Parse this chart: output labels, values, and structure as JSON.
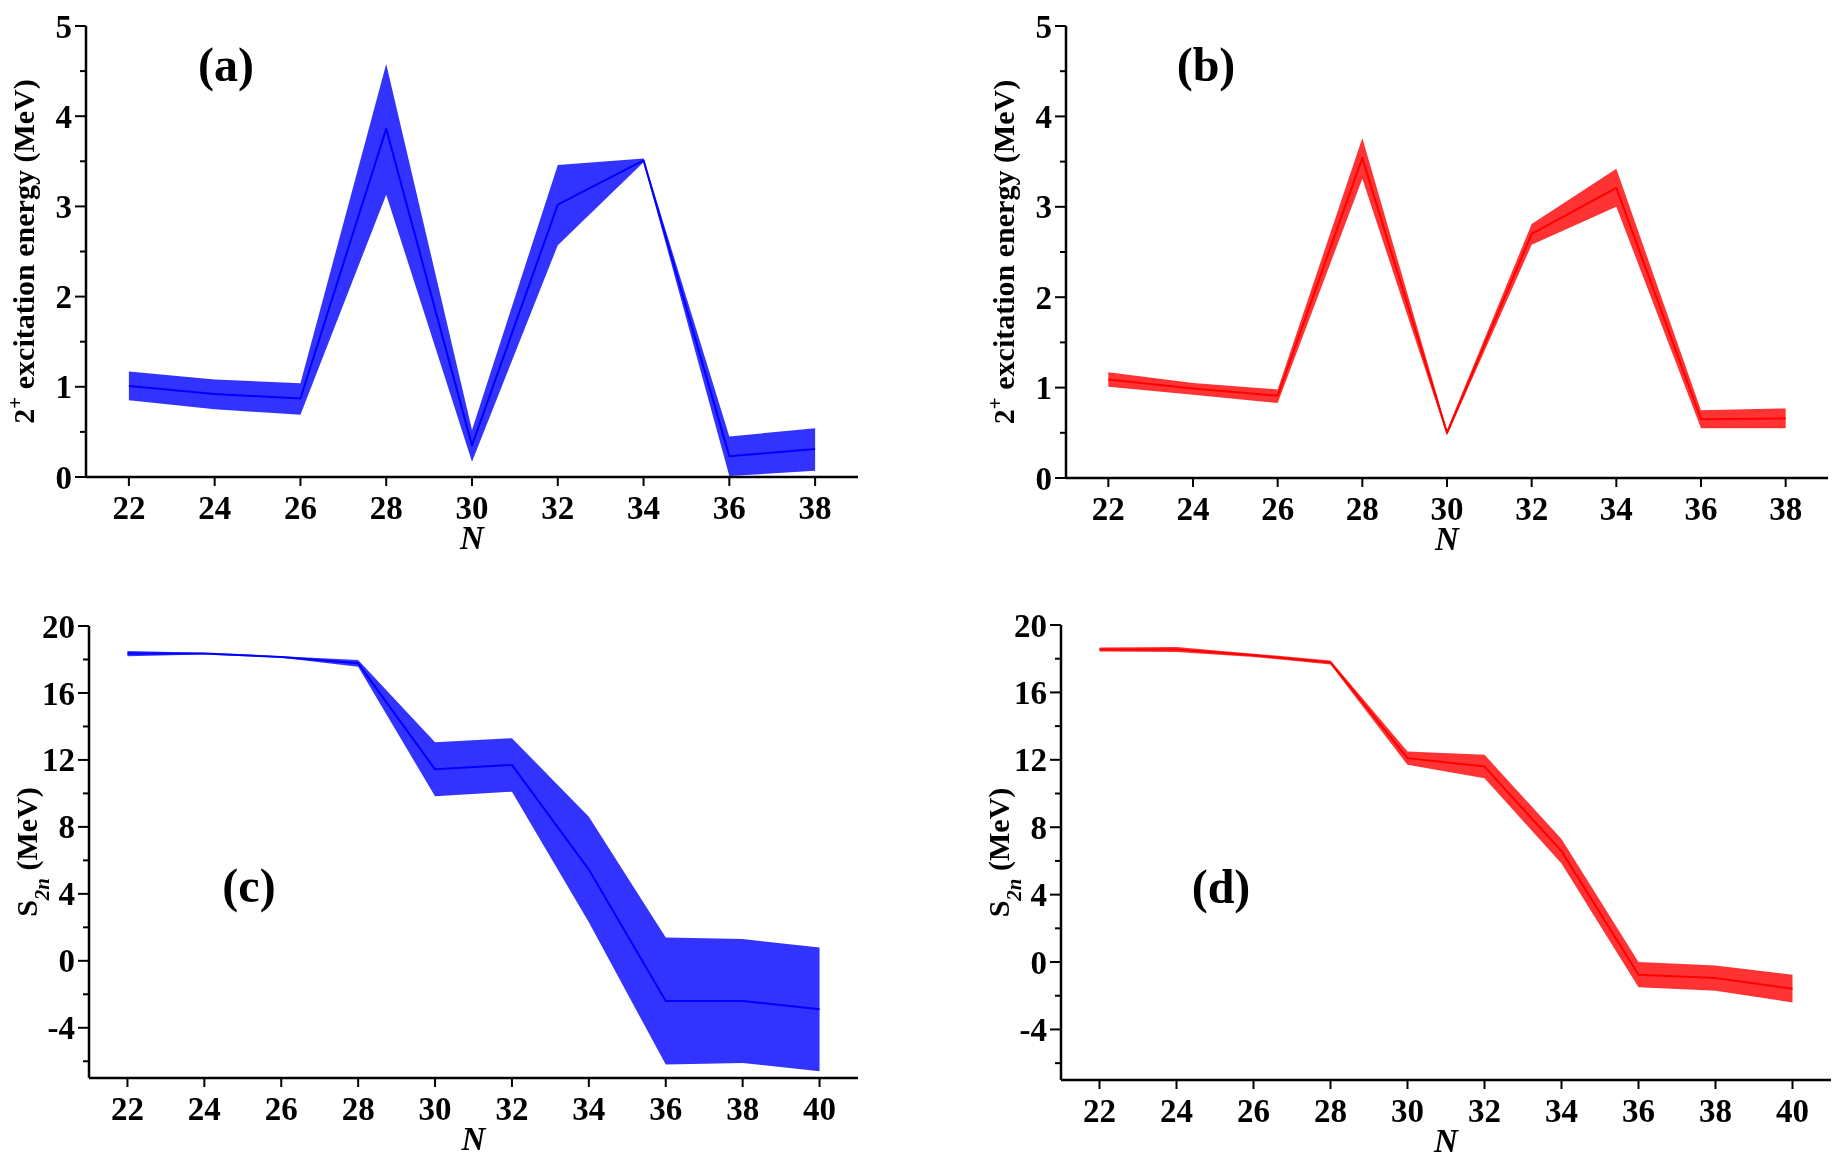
{
  "chart_data": [
    {
      "type": "line",
      "xlabel": "N",
      "ylabel": "2$^{+}$ excitation energy (MeV)",
      "annotations": [
        "(a)"
      ],
      "x": [
        22,
        24,
        26,
        28,
        30,
        32,
        34,
        36,
        38
      ],
      "xlim": [
        21,
        39
      ],
      "xticks": [
        22,
        24,
        26,
        28,
        30,
        32,
        34,
        36,
        38
      ],
      "ylim": [
        0,
        5
      ],
      "yticks": [
        0,
        {
          "value": 0.5,
          "label": null
        },
        1,
        {
          "value": 1.5,
          "label": null
        },
        2,
        {
          "value": 2.5,
          "label": null
        },
        3,
        {
          "value": 3.5,
          "label": null
        },
        4,
        {
          "value": 4.5,
          "label": null
        },
        5
      ],
      "series": [
        {
          "color": "#0000ff",
          "values": [
            1.01,
            0.92,
            0.87,
            3.86,
            0.35,
            3.02,
            3.51,
            0.23,
            0.31
          ],
          "lower": [
            0.85,
            0.75,
            0.69,
            3.13,
            0.17,
            2.57,
            3.49,
            0.01,
            0.07
          ],
          "upper": [
            1.17,
            1.08,
            1.04,
            4.58,
            0.52,
            3.46,
            3.53,
            0.45,
            0.54
          ]
        }
      ]
    },
    {
      "type": "line",
      "xlabel": "N",
      "ylabel": "2$^{+}$ excitation energy (MeV)",
      "annotations": [
        "(b)"
      ],
      "x": [
        22,
        24,
        26,
        28,
        30,
        32,
        34,
        36,
        38
      ],
      "xlim": [
        21,
        39
      ],
      "xticks": [
        22,
        24,
        26,
        28,
        30,
        32,
        34,
        36,
        38
      ],
      "ylim": [
        0,
        5
      ],
      "yticks": [
        0,
        {
          "value": 0.5,
          "label": null
        },
        1,
        {
          "value": 1.5,
          "label": null
        },
        2,
        {
          "value": 2.5,
          "label": null
        },
        3,
        {
          "value": 3.5,
          "label": null
        },
        4,
        {
          "value": 4.5,
          "label": null
        },
        5
      ],
      "series": [
        {
          "color": "#ff0000",
          "values": [
            1.09,
            0.99,
            0.91,
            3.54,
            0.5,
            2.7,
            3.21,
            0.65,
            0.66
          ],
          "lower": [
            1.01,
            0.92,
            0.83,
            3.31,
            0.47,
            2.58,
            3.0,
            0.55,
            0.55
          ],
          "upper": [
            1.17,
            1.05,
            0.98,
            3.76,
            0.53,
            2.81,
            3.42,
            0.75,
            0.77
          ]
        }
      ]
    },
    {
      "type": "line",
      "xlabel": "N",
      "ylabel": "S$_{2n}$ (MeV)",
      "annotations": [
        "(c)"
      ],
      "x": [
        22,
        24,
        26,
        28,
        30,
        32,
        34,
        36,
        38,
        40
      ],
      "xlim": [
        21,
        41
      ],
      "xticks": [
        22,
        24,
        26,
        28,
        30,
        32,
        34,
        36,
        38,
        40
      ],
      "ylim": [
        -7,
        20
      ],
      "yticks": [
        {
          "value": -6,
          "label": null
        },
        -4,
        {
          "value": -2,
          "label": null
        },
        0,
        {
          "value": 2,
          "label": null
        },
        4,
        {
          "value": 6,
          "label": null
        },
        8,
        {
          "value": 10,
          "label": null
        },
        12,
        {
          "value": 14,
          "label": null
        },
        16,
        {
          "value": 18,
          "label": null
        },
        20
      ],
      "series": [
        {
          "color": "#0000ff",
          "values": [
            18.35,
            18.35,
            18.15,
            17.77,
            11.44,
            11.7,
            5.45,
            -2.4,
            -2.4,
            -2.9
          ],
          "lower": [
            18.2,
            18.3,
            18.1,
            17.56,
            9.83,
            10.1,
            2.3,
            -6.2,
            -6.1,
            -6.6
          ],
          "upper": [
            18.5,
            18.4,
            18.2,
            17.97,
            13.05,
            13.3,
            8.6,
            1.4,
            1.3,
            0.8
          ]
        }
      ]
    },
    {
      "type": "line",
      "xlabel": "N",
      "ylabel": "S$_{2n}$ (MeV)",
      "annotations": [
        "(d)"
      ],
      "x": [
        22,
        24,
        26,
        28,
        30,
        32,
        34,
        36,
        38,
        40
      ],
      "xlim": [
        21,
        41
      ],
      "xticks": [
        22,
        24,
        26,
        28,
        30,
        32,
        34,
        36,
        38,
        40
      ],
      "ylim": [
        -7,
        20
      ],
      "yticks": [
        {
          "value": -6,
          "label": null
        },
        -4,
        {
          "value": -2,
          "label": null
        },
        0,
        {
          "value": 2,
          "label": null
        },
        4,
        {
          "value": 6,
          "label": null
        },
        8,
        {
          "value": 10,
          "label": null
        },
        12,
        {
          "value": 14,
          "label": null
        },
        16,
        {
          "value": 18,
          "label": null
        },
        20
      ],
      "series": [
        {
          "color": "#ff0000",
          "values": [
            18.55,
            18.55,
            18.2,
            17.78,
            12.1,
            11.6,
            6.58,
            -0.75,
            -0.95,
            -1.58
          ],
          "lower": [
            18.43,
            18.4,
            18.1,
            17.66,
            11.7,
            10.9,
            5.85,
            -1.5,
            -1.7,
            -2.4
          ],
          "upper": [
            18.66,
            18.7,
            18.3,
            17.9,
            12.5,
            12.3,
            7.3,
            0.0,
            -0.2,
            -0.75
          ]
        }
      ]
    }
  ]
}
